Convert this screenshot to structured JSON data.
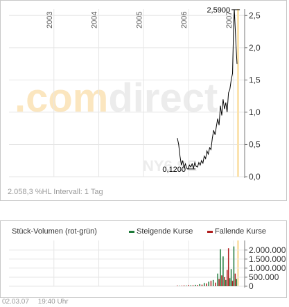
{
  "chart_data": [
    {
      "type": "line",
      "title": "",
      "xlabel": "",
      "ylabel": "",
      "x_ticks": [
        "2003",
        "2004",
        "2005",
        "2006",
        "2007"
      ],
      "y_ticks": [
        "0,0",
        "0,5",
        "1,0",
        "1,5",
        "2,0",
        "2,5"
      ],
      "ylim": [
        0,
        2.6
      ],
      "xlim": [
        2002.0,
        2007.25
      ],
      "grid": true,
      "watermark": ".comdirect",
      "watermark_symbol": "NY6 SE",
      "annotations": [
        {
          "label": "2,5900",
          "x": 2007.02,
          "y": 2.59
        },
        {
          "label": "0,1200",
          "x": 2006.0,
          "y": 0.12
        }
      ],
      "series": [
        {
          "color": "#000000",
          "x": [
            2005.75,
            2005.78,
            2005.81,
            2005.84,
            2005.87,
            2005.9,
            2005.93,
            2005.96,
            2005.99,
            2006.02,
            2006.05,
            2006.08,
            2006.11,
            2006.14,
            2006.17,
            2006.2,
            2006.23,
            2006.26,
            2006.29,
            2006.32,
            2006.35,
            2006.38,
            2006.41,
            2006.44,
            2006.47,
            2006.5,
            2006.53,
            2006.56,
            2006.59,
            2006.62,
            2006.65,
            2006.68,
            2006.71,
            2006.74,
            2006.77,
            2006.8,
            2006.83,
            2006.86,
            2006.89,
            2006.92,
            2006.95,
            2006.98,
            2007.0,
            2007.02,
            2007.04,
            2007.06,
            2007.08
          ],
          "values": [
            0.6,
            0.5,
            0.32,
            0.18,
            0.25,
            0.14,
            0.2,
            0.13,
            0.12,
            0.18,
            0.15,
            0.2,
            0.13,
            0.22,
            0.16,
            0.15,
            0.22,
            0.18,
            0.25,
            0.21,
            0.32,
            0.28,
            0.4,
            0.35,
            0.45,
            0.42,
            0.6,
            0.72,
            0.65,
            0.78,
            0.9,
            0.8,
            1.1,
            0.95,
            1.2,
            1.05,
            1.15,
            1.0,
            1.3,
            1.35,
            1.5,
            1.6,
            2.2,
            2.59,
            2.3,
            2.0,
            1.75
          ]
        }
      ]
    },
    {
      "type": "bar",
      "title": "Stück-Volumen (rot-grün)",
      "y_ticks": [
        "0",
        "500.000",
        "1.000.000",
        "1.500.000",
        "2.000.000"
      ],
      "ylim": [
        0,
        2300000
      ],
      "grid": true,
      "legend_position": "top-right",
      "series": [
        {
          "name": "Steigende Kurse",
          "color": "#1f7a3a"
        },
        {
          "name": "Fallende Kurse",
          "color": "#b01e1e"
        }
      ],
      "bars": [
        {
          "x": 2005.75,
          "v": 30000,
          "c": "r"
        },
        {
          "x": 2005.8,
          "v": 20000,
          "c": "g"
        },
        {
          "x": 2005.85,
          "v": 25000,
          "c": "r"
        },
        {
          "x": 2005.9,
          "v": 40000,
          "c": "r"
        },
        {
          "x": 2005.95,
          "v": 30000,
          "c": "g"
        },
        {
          "x": 2006.0,
          "v": 60000,
          "c": "r"
        },
        {
          "x": 2006.05,
          "v": 45000,
          "c": "g"
        },
        {
          "x": 2006.1,
          "v": 50000,
          "c": "r"
        },
        {
          "x": 2006.15,
          "v": 80000,
          "c": "g"
        },
        {
          "x": 2006.2,
          "v": 60000,
          "c": "r"
        },
        {
          "x": 2006.25,
          "v": 120000,
          "c": "g"
        },
        {
          "x": 2006.3,
          "v": 90000,
          "c": "r"
        },
        {
          "x": 2006.35,
          "v": 180000,
          "c": "g"
        },
        {
          "x": 2006.4,
          "v": 150000,
          "c": "r"
        },
        {
          "x": 2006.45,
          "v": 250000,
          "c": "g"
        },
        {
          "x": 2006.5,
          "v": 300000,
          "c": "r"
        },
        {
          "x": 2006.55,
          "v": 350000,
          "c": "g"
        },
        {
          "x": 2006.6,
          "v": 200000,
          "c": "r"
        },
        {
          "x": 2006.65,
          "v": 700000,
          "c": "g"
        },
        {
          "x": 2006.68,
          "v": 400000,
          "c": "r"
        },
        {
          "x": 2006.71,
          "v": 2050000,
          "c": "g"
        },
        {
          "x": 2006.74,
          "v": 600000,
          "c": "r"
        },
        {
          "x": 2006.77,
          "v": 1650000,
          "c": "g"
        },
        {
          "x": 2006.8,
          "v": 500000,
          "c": "r"
        },
        {
          "x": 2006.83,
          "v": 350000,
          "c": "g"
        },
        {
          "x": 2006.86,
          "v": 900000,
          "c": "r"
        },
        {
          "x": 2006.89,
          "v": 2100000,
          "c": "r"
        },
        {
          "x": 2006.92,
          "v": 450000,
          "c": "g"
        },
        {
          "x": 2006.95,
          "v": 950000,
          "c": "g"
        },
        {
          "x": 2006.98,
          "v": 300000,
          "c": "r"
        },
        {
          "x": 2007.01,
          "v": 2200000,
          "c": "g"
        },
        {
          "x": 2007.04,
          "v": 700000,
          "c": "r"
        },
        {
          "x": 2007.07,
          "v": 400000,
          "c": "g"
        }
      ]
    }
  ],
  "price_info": "2.058,3 %HL  Intervall: 1 Tag",
  "footer": {
    "date": "02.03.07",
    "time": "19:40 Uhr"
  }
}
